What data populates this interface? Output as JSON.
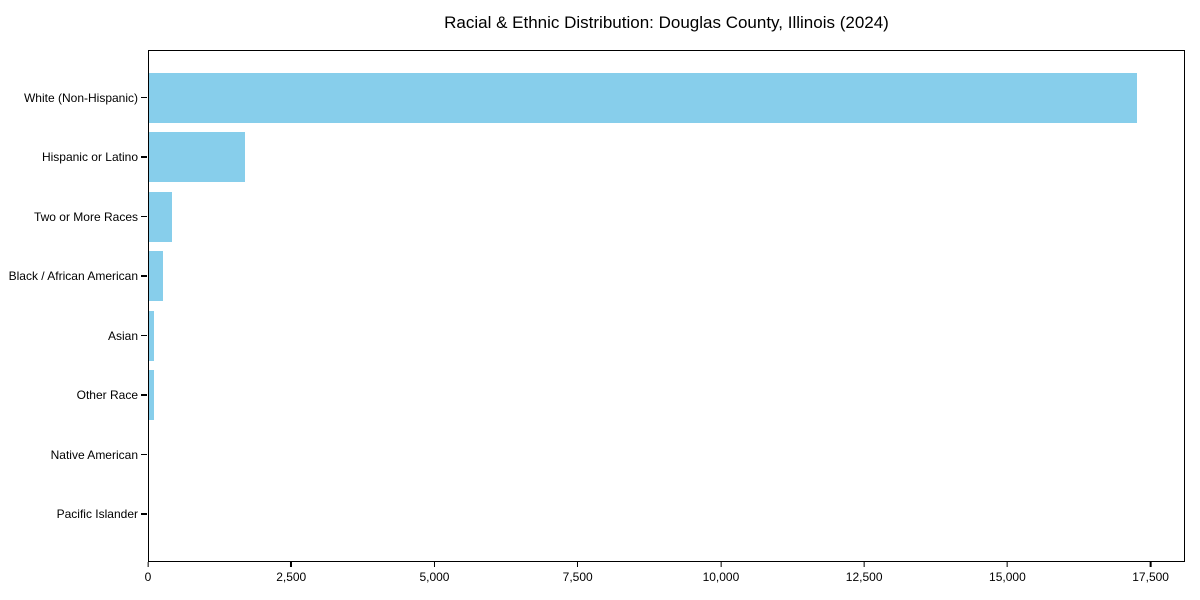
{
  "figure": {
    "background": "#ffffff"
  },
  "chart_data": {
    "type": "bar",
    "orientation": "horizontal",
    "title": "Racial & Ethnic Distribution: Douglas County, Illinois (2024)",
    "categories": [
      "White (Non-Hispanic)",
      "Hispanic or Latino",
      "Two or More Races",
      "Black / African American",
      "Asian",
      "Other Race",
      "Native American",
      "Pacific Islander"
    ],
    "values": [
      17270,
      1675,
      400,
      245,
      90,
      95,
      0,
      0
    ],
    "xlabel": "",
    "ylabel": "",
    "xlim": [
      0,
      18100
    ],
    "x_ticks": [
      0,
      2500,
      5000,
      7500,
      10000,
      12500,
      15000,
      17500
    ],
    "x_tick_labels": [
      "0",
      "2,500",
      "5,000",
      "7,500",
      "10,000",
      "12,500",
      "15,000",
      "17,500"
    ],
    "bar_color": "#87ceeb",
    "axis_color": "#000000",
    "text_color": "#000000",
    "grid": false,
    "legend_position": "none"
  }
}
